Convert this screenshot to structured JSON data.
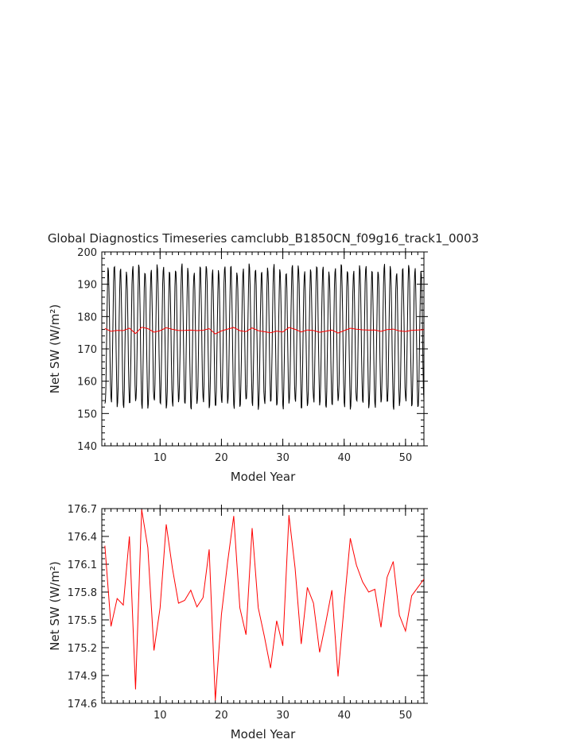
{
  "title": "Global Diagnostics Timeseries camclubb_B1850CN_f09g16_track1_0003",
  "chart_data": [
    {
      "type": "line",
      "xlabel": "Model Year",
      "ylabel": "Net SW (W/m²)",
      "xlim": [
        0.5,
        53
      ],
      "ylim": [
        140,
        200
      ],
      "xticks": [
        10,
        20,
        30,
        40,
        50
      ],
      "yticks": [
        140,
        150,
        160,
        170,
        180,
        190,
        200
      ],
      "series": [
        {
          "color": "#000000",
          "seasonal_cycle": {
            "start_year": 1,
            "months": 636,
            "min": 150.5,
            "max": 197.0,
            "mean": 175.8
          }
        },
        {
          "color": "#ff0000",
          "x": [
            1,
            2,
            3,
            4,
            5,
            6,
            7,
            8,
            9,
            10,
            11,
            12,
            13,
            14,
            15,
            16,
            17,
            18,
            19,
            20,
            21,
            22,
            23,
            24,
            25,
            26,
            27,
            28,
            29,
            30,
            31,
            32,
            33,
            34,
            35,
            36,
            37,
            38,
            39,
            40,
            41,
            42,
            43,
            44,
            45,
            46,
            47,
            48,
            49,
            50,
            51,
            52,
            53
          ],
          "values": [
            176.3,
            175.43,
            175.73,
            175.66,
            176.4,
            174.75,
            176.69,
            176.28,
            175.17,
            175.63,
            176.53,
            176.06,
            175.68,
            175.71,
            175.82,
            175.64,
            175.74,
            176.26,
            174.63,
            175.56,
            176.12,
            176.62,
            175.63,
            175.34,
            176.49,
            175.63,
            175.32,
            174.98,
            175.49,
            175.22,
            176.63,
            176.06,
            175.24,
            175.85,
            175.68,
            175.15,
            175.47,
            175.82,
            174.89,
            175.66,
            176.38,
            176.09,
            175.91,
            175.8,
            175.83,
            175.42,
            175.96,
            176.13,
            175.55,
            175.38,
            175.76,
            175.85,
            175.94
          ]
        }
      ]
    },
    {
      "type": "line",
      "xlabel": "Model Year",
      "ylabel": "Net SW (W/m²)",
      "xlim": [
        0.5,
        53
      ],
      "ylim": [
        174.6,
        176.7
      ],
      "xticks": [
        10,
        20,
        30,
        40,
        50
      ],
      "yticks": [
        174.6,
        174.9,
        175.2,
        175.5,
        175.8,
        176.1,
        176.4,
        176.7
      ],
      "series": [
        {
          "color": "#ff0000",
          "x": [
            1,
            2,
            3,
            4,
            5,
            6,
            7,
            8,
            9,
            10,
            11,
            12,
            13,
            14,
            15,
            16,
            17,
            18,
            19,
            20,
            21,
            22,
            23,
            24,
            25,
            26,
            27,
            28,
            29,
            30,
            31,
            32,
            33,
            34,
            35,
            36,
            37,
            38,
            39,
            40,
            41,
            42,
            43,
            44,
            45,
            46,
            47,
            48,
            49,
            50,
            51,
            52,
            53
          ],
          "values": [
            176.3,
            175.43,
            175.73,
            175.66,
            176.4,
            174.75,
            176.69,
            176.28,
            175.17,
            175.63,
            176.53,
            176.06,
            175.68,
            175.71,
            175.82,
            175.64,
            175.74,
            176.26,
            174.63,
            175.56,
            176.12,
            176.62,
            175.63,
            175.34,
            176.49,
            175.63,
            175.32,
            174.98,
            175.49,
            175.22,
            176.63,
            176.06,
            175.24,
            175.85,
            175.68,
            175.15,
            175.47,
            175.82,
            174.89,
            175.66,
            176.38,
            176.09,
            175.91,
            175.8,
            175.83,
            175.42,
            175.96,
            176.13,
            175.55,
            175.38,
            175.76,
            175.85,
            175.94
          ]
        }
      ]
    }
  ]
}
